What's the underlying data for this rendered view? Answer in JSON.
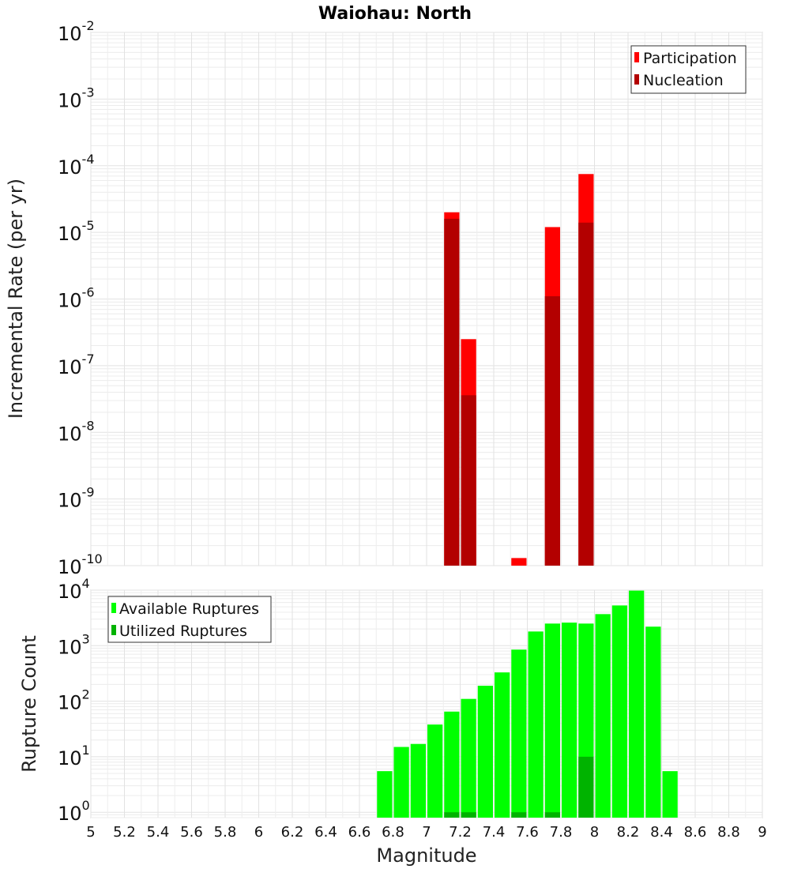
{
  "chart_data": [
    {
      "type": "bar",
      "title": "Waiohau: North",
      "xlabel": "Magnitude",
      "ylabel": "Incremental Rate (per yr)",
      "yscale": "log",
      "ylim": [
        1e-10,
        0.01
      ],
      "xlim": [
        5,
        9
      ],
      "legend_position": "top-right",
      "colors": {
        "Participation": "#ff0000",
        "Nucleation": "#b30000"
      },
      "series": [
        {
          "name": "Participation",
          "x": [
            7.15,
            7.25,
            7.55,
            7.75,
            7.95
          ],
          "values": [
            2e-05,
            2.5e-07,
            1.3e-10,
            1.2e-05,
            7.5e-05
          ]
        },
        {
          "name": "Nucleation",
          "x": [
            7.15,
            7.25,
            7.55,
            7.75,
            7.95
          ],
          "values": [
            1.6e-05,
            3.6e-08,
            1e-10,
            1.1e-06,
            1.4e-05
          ]
        }
      ],
      "ytick_labels": [
        "10^-10",
        "10^-9",
        "10^-8",
        "10^-7",
        "10^-6",
        "10^-5",
        "10^-4",
        "10^-3",
        "10^-2"
      ]
    },
    {
      "type": "bar",
      "xlabel": "Magnitude",
      "ylabel": "Rupture Count",
      "yscale": "log",
      "ylim": [
        0.8,
        10000
      ],
      "xlim": [
        5,
        9
      ],
      "legend_position": "top-left",
      "colors": {
        "Available Ruptures": "#00ff00",
        "Utilized Ruptures": "#00b300"
      },
      "series": [
        {
          "name": "Available Ruptures",
          "x": [
            6.75,
            6.85,
            6.95,
            7.05,
            7.15,
            7.25,
            7.35,
            7.45,
            7.55,
            7.65,
            7.75,
            7.85,
            7.95,
            8.05,
            8.15,
            8.25,
            8.35,
            8.45
          ],
          "values": [
            5.5,
            15,
            17,
            38,
            65,
            110,
            190,
            330,
            850,
            1800,
            2500,
            2600,
            2500,
            3700,
            5300,
            9800,
            2200,
            5.5
          ]
        },
        {
          "name": "Utilized Ruptures",
          "x": [
            7.15,
            7.25,
            7.55,
            7.75,
            7.95
          ],
          "values": [
            1,
            1,
            1,
            1,
            10
          ]
        }
      ],
      "ytick_labels": [
        "10^0",
        "10^1",
        "10^2",
        "10^3",
        "10^4"
      ],
      "xticks": [
        "5",
        "5.2",
        "5.4",
        "5.6",
        "5.8",
        "6",
        "6.2",
        "6.4",
        "6.6",
        "6.8",
        "7",
        "7.2",
        "7.4",
        "7.6",
        "7.8",
        "8",
        "8.2",
        "8.4",
        "8.6",
        "8.8",
        "9"
      ]
    }
  ]
}
